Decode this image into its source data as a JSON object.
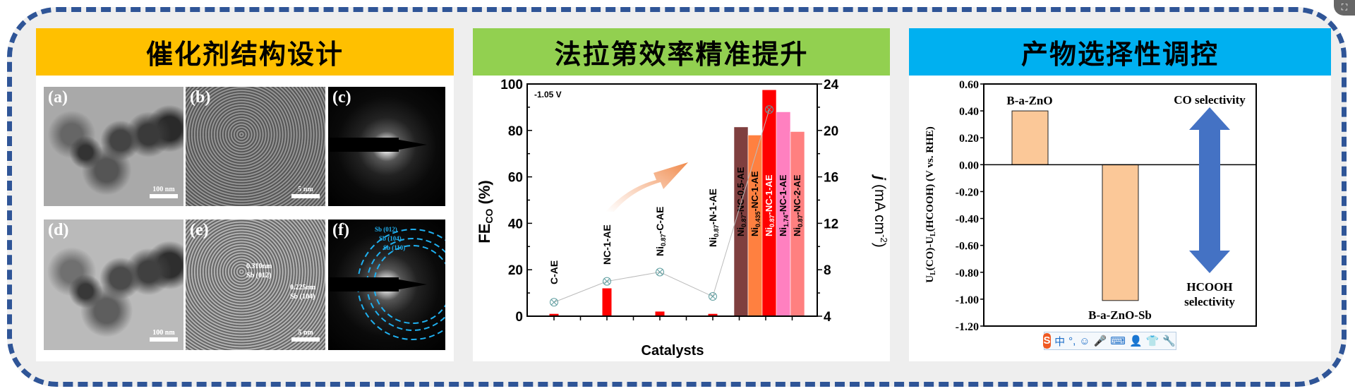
{
  "panels": [
    {
      "title": "催化剂结构设计",
      "color": "#ffc000",
      "images": [
        {
          "label": "(a)",
          "scale": "100 nm"
        },
        {
          "label": "(b)",
          "scale": "5 nm"
        },
        {
          "label": "(c)"
        },
        {
          "label": "(d)",
          "scale": "100 nm"
        },
        {
          "label": "(e)",
          "scale": "5 nm",
          "annotations": [
            "0.310nm",
            "Sb (012)",
            "0.225nm",
            "Sb (104)"
          ]
        },
        {
          "label": "(f)",
          "rings": [
            "Sb (012)",
            "Sb (104)",
            "Sb (110)"
          ]
        }
      ]
    },
    {
      "title": "法拉第效率精准提升",
      "color": "#92d050"
    },
    {
      "title": "产物选择性调控",
      "color": "#00b0f0"
    }
  ],
  "chart_data": [
    {
      "type": "bar",
      "annotation": "-1.05 V",
      "xlabel": "Catalysts",
      "ylabel": {
        "main": "FE",
        "sub": "CO",
        "rest": " (%)"
      },
      "y2label": {
        "italic": "j",
        "rest": " (mA cm",
        "sup": "-2",
        "end": ")"
      },
      "ylim": [
        0,
        100
      ],
      "y2lim": [
        4,
        24
      ],
      "yticks": [
        0,
        20,
        40,
        60,
        80,
        100
      ],
      "y2ticks": [
        4,
        8,
        12,
        16,
        20,
        24
      ],
      "categories": [
        {
          "main": "C-AE",
          "sub": "",
          "rest": ""
        },
        {
          "main": "NC-1-AE",
          "sub": "",
          "rest": ""
        },
        {
          "main": "Ni",
          "sub": "0.87",
          "rest": "-C-AE"
        },
        {
          "main": "Ni",
          "sub": "0.87",
          "rest": "-N-1-AE"
        },
        {
          "main": "Ni",
          "sub": "0.87",
          "rest": "-NC-0.5-AE"
        },
        {
          "main": "Ni",
          "sub": "0.435",
          "rest": "-NC-1-AE"
        },
        {
          "main": "Ni",
          "sub": "0.87",
          "rest": "-NC-1-AE"
        },
        {
          "main": "Ni",
          "sub": "1.74",
          "rest": "-NC-1-AE"
        },
        {
          "main": "Ni",
          "sub": "0.87",
          "rest": "-NC-2-AE"
        }
      ],
      "fe_values": [
        1,
        12,
        2,
        1,
        81.5,
        78,
        97.5,
        88,
        79.5
      ],
      "bar_colors": [
        "#ff0000",
        "#ff0000",
        "#ff0000",
        "#ff0000",
        "#7f3f3f",
        "#ff8040",
        "#ff0000",
        "#ff80c0",
        "#ff8080"
      ],
      "j_series": {
        "categories": [
          "C-AE",
          "NC-1-AE",
          "Ni0.87-C-AE",
          "Ni0.87-N-1-AE",
          "Ni0.87-NC-1-AE"
        ],
        "values": [
          5.2,
          7.0,
          7.8,
          5.7,
          21.8
        ],
        "color": "#5f9ea0"
      }
    },
    {
      "type": "bar",
      "ylabel": {
        "a": "U",
        "as": "L",
        "b": "(CO)-U",
        "bs": "L",
        "c": "(HCOOH) (V vs. RHE)"
      },
      "ylim": [
        -1.2,
        0.6
      ],
      "yticks": [
        0.6,
        0.4,
        0.2,
        0,
        -0.2,
        -0.4,
        -0.6,
        -0.8,
        -1.0,
        -1.2
      ],
      "categories": [
        "B-a-ZnO",
        "B-a-ZnO-Sb"
      ],
      "values": [
        0.4,
        -1.01
      ],
      "bar_color": "#fbc898",
      "arrow_color": "#4472c4",
      "top_label": "CO selectivity",
      "bottom_label": [
        "HCOOH",
        "selectivity"
      ]
    }
  ],
  "ime_toolbar": {
    "items": [
      "S",
      "中",
      "°,",
      "☺",
      "🎤",
      "⌨",
      "👤",
      "👕",
      "🔧"
    ]
  },
  "corner_button": {
    "icon": "screenshot-icon"
  }
}
